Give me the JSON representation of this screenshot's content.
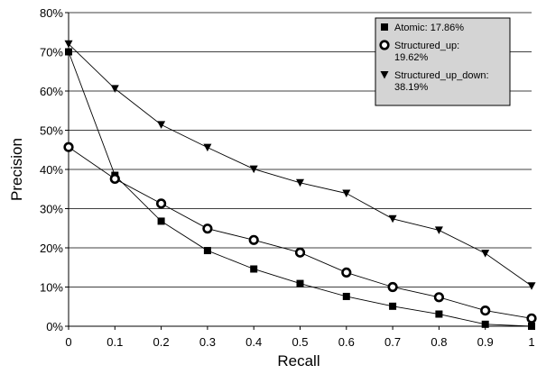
{
  "chart_data": {
    "type": "line",
    "xlabel": "Recall",
    "ylabel": "Precision",
    "x": [
      0,
      0.1,
      0.2,
      0.3,
      0.4,
      0.5,
      0.6,
      0.7,
      0.8,
      0.9,
      1
    ],
    "x_tick_labels": [
      "0",
      "0.1",
      "0.2",
      "0.3",
      "0.4",
      "0.5",
      "0.6",
      "0.7",
      "0.8",
      "0.9",
      "1"
    ],
    "y_tick_labels": [
      "0%",
      "10%",
      "20%",
      "30%",
      "40%",
      "50%",
      "60%",
      "70%",
      "80%"
    ],
    "xlim": [
      0,
      1
    ],
    "ylim": [
      0,
      80
    ],
    "grid": "horizontal",
    "legend_position": "top-right",
    "series": [
      {
        "name": "Atomic: 17.86%",
        "legend_lines": [
          "Atomic: 17.86%"
        ],
        "marker": "square",
        "values": [
          70,
          38.5,
          26.8,
          19.3,
          14.6,
          10.9,
          7.6,
          5.1,
          3.1,
          0.5,
          0
        ]
      },
      {
        "name": "Structured_up: 19.62%",
        "legend_lines": [
          "Structured_up:",
          "19.62%"
        ],
        "marker": "ring",
        "values": [
          45.7,
          37.6,
          31.3,
          24.9,
          22.0,
          18.8,
          13.7,
          10.0,
          7.4,
          4.0,
          2.0
        ]
      },
      {
        "name": "Structured_up_down: 38.19%",
        "legend_lines": [
          "Structured_up_down:",
          "38.19%"
        ],
        "marker": "triangle-down",
        "values": [
          72,
          60.6,
          51.4,
          45.6,
          40.1,
          36.6,
          33.9,
          27.4,
          24.5,
          18.6,
          10.3
        ]
      }
    ],
    "colors": {
      "line": "#000000",
      "grid": "#000000",
      "legend_bg": "#d4d4d4",
      "ring_center": "#ffffff"
    }
  }
}
